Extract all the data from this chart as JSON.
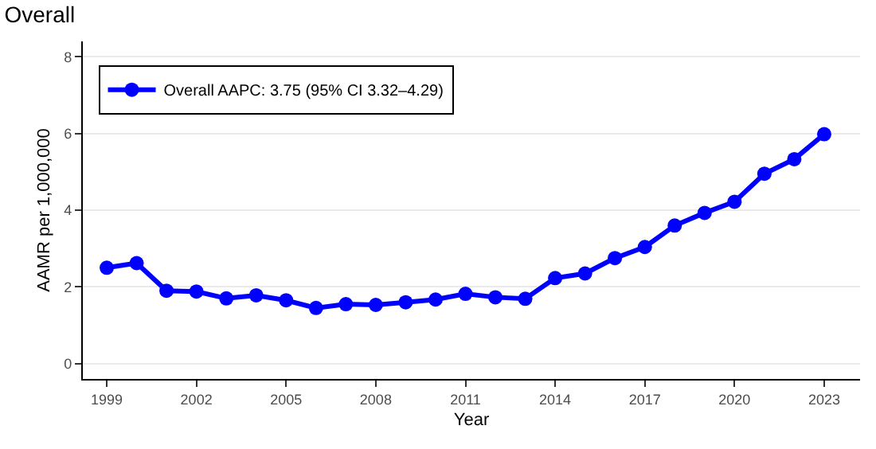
{
  "chart_data": {
    "type": "line",
    "title": "Overall",
    "xlabel": "Year",
    "ylabel": "AAMR per 1,000,000",
    "x": [
      1999,
      2000,
      2001,
      2002,
      2003,
      2004,
      2005,
      2006,
      2007,
      2008,
      2009,
      2010,
      2011,
      2012,
      2013,
      2014,
      2015,
      2016,
      2017,
      2018,
      2019,
      2020,
      2021,
      2022,
      2023
    ],
    "series": [
      {
        "name": "Overall AAPC: 3.75 (95% CI 3.32–4.29)",
        "color": "#0000ff",
        "values": [
          2.5,
          2.62,
          1.9,
          1.88,
          1.7,
          1.78,
          1.65,
          1.45,
          1.55,
          1.53,
          1.6,
          1.67,
          1.82,
          1.73,
          1.69,
          2.23,
          2.35,
          2.75,
          3.04,
          3.6,
          3.93,
          4.22,
          4.95,
          5.33,
          5.98
        ]
      }
    ],
    "xlim": [
      1998.2,
      2024.2
    ],
    "xticks": [
      1999,
      2002,
      2005,
      2008,
      2011,
      2014,
      2017,
      2020,
      2023
    ],
    "ylim": [
      -0.4,
      8.4
    ],
    "yticks": [
      0,
      2,
      4,
      6,
      8
    ],
    "grid": "y",
    "legend": "top left",
    "marker": "circle",
    "line_style": "solid"
  }
}
